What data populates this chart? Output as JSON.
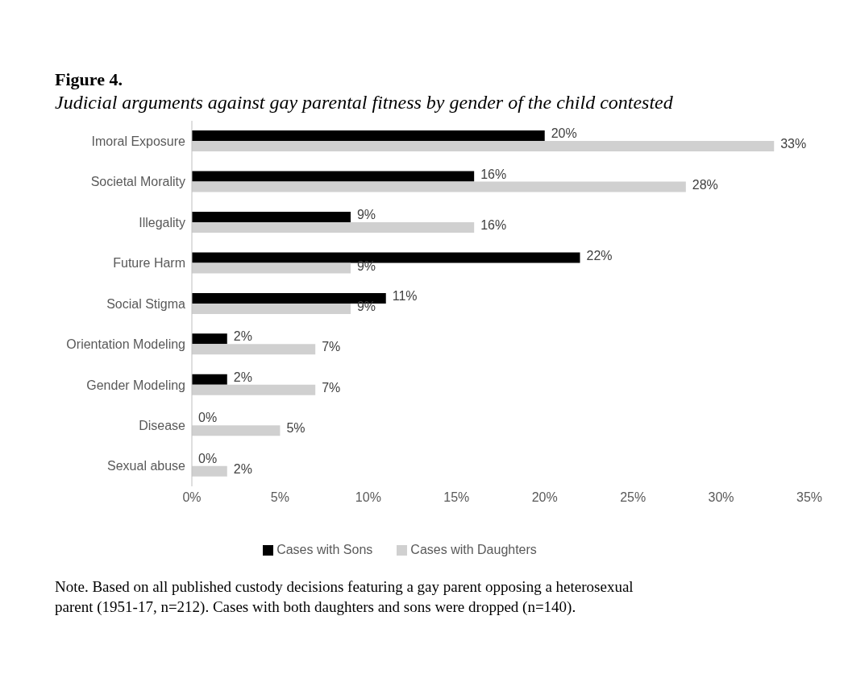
{
  "chart_data": {
    "type": "bar",
    "orientation": "horizontal",
    "title": "Figure 4.",
    "subtitle": "Judicial arguments against gay parental fitness by gender of the child contested",
    "categories": [
      "Imoral Exposure",
      "Societal Morality",
      "Illegality",
      "Future Harm",
      "Social Stigma",
      "Orientation Modeling",
      "Gender Modeling",
      "Disease",
      "Sexual abuse"
    ],
    "series": [
      {
        "name": "Cases with Sons",
        "color": "#000000",
        "values": [
          20,
          16,
          9,
          22,
          11,
          2,
          2,
          0,
          0
        ],
        "value_labels": [
          "20%",
          "16%",
          "9%",
          "22%",
          "11%",
          "2%",
          "2%",
          "0%",
          "0%"
        ]
      },
      {
        "name": "Cases with Daughters",
        "color": "#d0d0d0",
        "values": [
          33,
          28,
          16,
          9,
          9,
          7,
          7,
          5,
          2
        ],
        "value_labels": [
          "33%",
          "28%",
          "16%",
          "9%",
          "9%",
          "7%",
          "7%",
          "5%",
          "2%"
        ]
      }
    ],
    "xlim": [
      0,
      35
    ],
    "xticks": [
      {
        "value": 0,
        "label": "0%"
      },
      {
        "value": 5,
        "label": "5%"
      },
      {
        "value": 10,
        "label": "10%"
      },
      {
        "value": 15,
        "label": "15%"
      },
      {
        "value": 20,
        "label": "20%"
      },
      {
        "value": 25,
        "label": "25%"
      },
      {
        "value": 30,
        "label": "30%"
      },
      {
        "value": 35,
        "label": "35%"
      }
    ],
    "legend": "bottom",
    "annotations": [
      "Note. Based on all published custody decisions featuring a gay parent opposing a heterosexual parent (1951-17, n=212). Cases with both daughters and sons were dropped (n=140)."
    ]
  }
}
